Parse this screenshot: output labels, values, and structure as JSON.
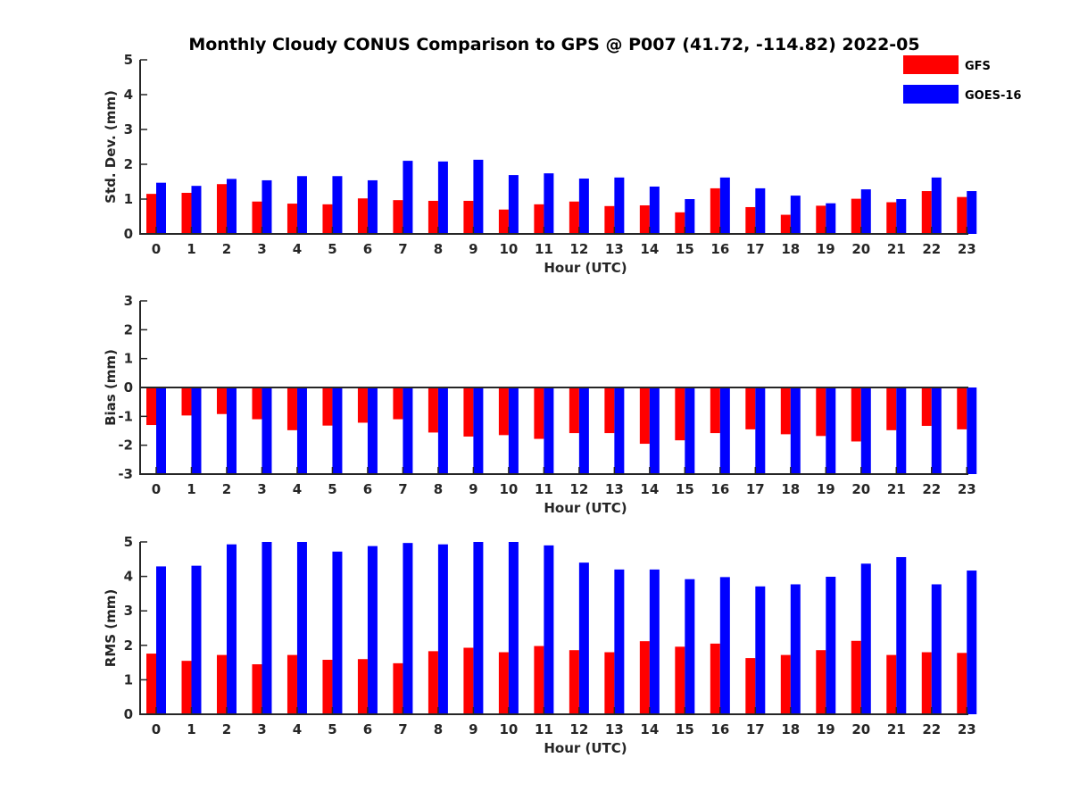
{
  "chart_data": {
    "type": "bar",
    "title": "Monthly Cloudy CONUS Comparison to GPS @ P007 (41.72, -114.82) 2022-05",
    "categories": [
      "0",
      "1",
      "2",
      "3",
      "4",
      "5",
      "6",
      "7",
      "8",
      "9",
      "10",
      "11",
      "12",
      "13",
      "14",
      "15",
      "16",
      "17",
      "18",
      "19",
      "20",
      "21",
      "22",
      "23"
    ],
    "xlabel": "Hour (UTC)",
    "legend": {
      "placement": "top-right",
      "entries": [
        {
          "name": "GFS",
          "color": "#ff0000"
        },
        {
          "name": "GOES-16",
          "color": "#0000ff"
        }
      ]
    },
    "panels": [
      {
        "id": "std",
        "ylabel": "Std. Dev. (mm)",
        "ylim": [
          0,
          5
        ],
        "yticks": [
          "0",
          "1",
          "2",
          "3",
          "4",
          "5"
        ],
        "series": [
          {
            "name": "GFS",
            "values": [
              1.15,
              1.18,
              1.43,
              0.93,
              0.87,
              0.85,
              1.02,
              0.97,
              0.95,
              0.95,
              0.7,
              0.85,
              0.93,
              0.8,
              0.82,
              0.62,
              1.31,
              0.77,
              0.55,
              0.81,
              1.01,
              0.91,
              1.23,
              1.06
            ]
          },
          {
            "name": "GOES-16",
            "values": [
              1.47,
              1.38,
              1.58,
              1.54,
              1.66,
              1.66,
              1.54,
              2.1,
              2.08,
              2.13,
              1.69,
              1.74,
              1.59,
              1.62,
              1.36,
              1.0,
              1.62,
              1.31,
              1.1,
              0.88,
              1.28,
              1.0,
              1.62,
              1.23
            ]
          }
        ]
      },
      {
        "id": "bias",
        "ylabel": "Bias (mm)",
        "ylim": [
          -3,
          3
        ],
        "yticks": [
          "-3",
          "-2",
          "-1",
          "0",
          "1",
          "2",
          "3"
        ],
        "series": [
          {
            "name": "GFS",
            "values": [
              -1.3,
              -0.97,
              -0.92,
              -1.1,
              -1.48,
              -1.32,
              -1.22,
              -1.1,
              -1.56,
              -1.7,
              -1.65,
              -1.78,
              -1.58,
              -1.58,
              -1.95,
              -1.83,
              -1.58,
              -1.45,
              -1.62,
              -1.68,
              -1.87,
              -1.48,
              -1.33,
              -1.45
            ]
          },
          {
            "name": "GOES-16",
            "values": [
              -3.0,
              -3.0,
              -3.0,
              -3.0,
              -3.0,
              -3.0,
              -3.0,
              -3.0,
              -3.0,
              -3.0,
              -3.0,
              -3.0,
              -3.0,
              -3.0,
              -3.0,
              -3.0,
              -3.0,
              -3.0,
              -3.0,
              -3.0,
              -3.0,
              -3.0,
              -3.0,
              -3.0
            ]
          }
        ]
      },
      {
        "id": "rms",
        "ylabel": "RMS (mm)",
        "ylim": [
          0,
          5
        ],
        "yticks": [
          "0",
          "1",
          "2",
          "3",
          "4",
          "5"
        ],
        "series": [
          {
            "name": "GFS",
            "values": [
              1.76,
              1.55,
              1.72,
              1.45,
              1.72,
              1.58,
              1.6,
              1.48,
              1.83,
              1.93,
              1.8,
              1.98,
              1.86,
              1.8,
              2.12,
              1.96,
              2.05,
              1.63,
              1.72,
              1.86,
              2.13,
              1.72,
              1.8,
              1.78
            ]
          },
          {
            "name": "GOES-16",
            "values": [
              4.29,
              4.31,
              4.93,
              5.0,
              5.0,
              4.72,
              4.88,
              4.97,
              4.93,
              5.0,
              5.0,
              4.9,
              4.4,
              4.2,
              4.2,
              3.92,
              3.98,
              3.71,
              3.77,
              3.99,
              4.37,
              4.56,
              3.77,
              4.17
            ]
          }
        ]
      }
    ]
  }
}
